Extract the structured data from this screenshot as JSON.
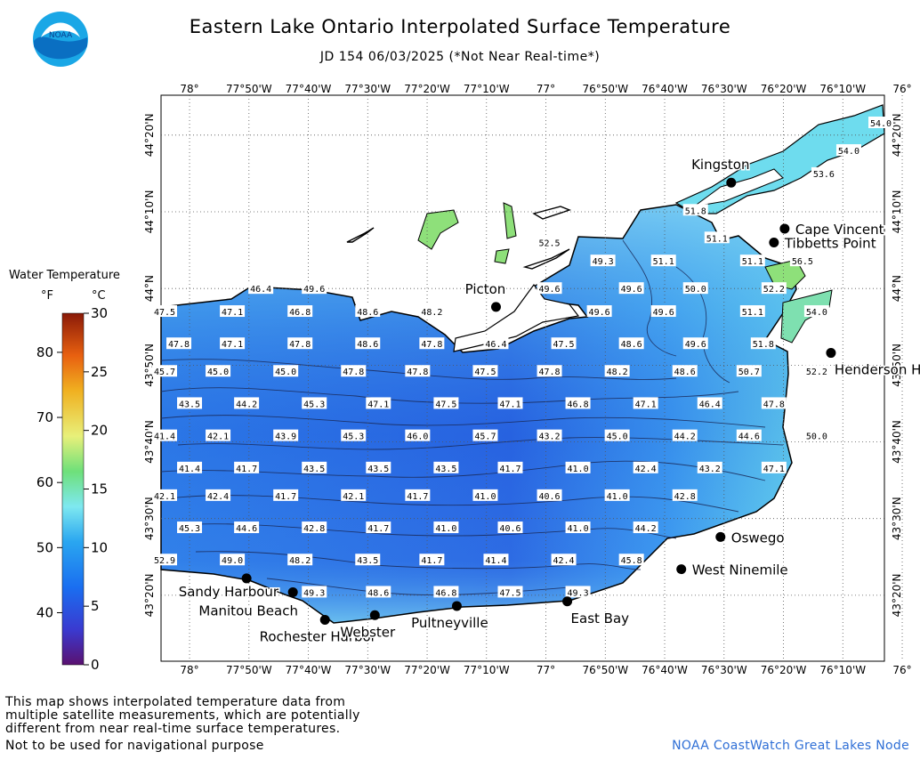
{
  "title": "Eastern Lake Ontario Interpolated Surface Temperature",
  "subtitle": "JD 154 06/03/2025 (*Not Near Real-time*)",
  "logo": {
    "text": "NOAA",
    "icon": "noaa-logo-icon"
  },
  "legend": {
    "title": "Water Temperature",
    "unit_f": "°F",
    "unit_c": "°C",
    "f_ticks": [
      "80",
      "70",
      "60",
      "50",
      "40"
    ],
    "f_values": [
      80,
      70,
      60,
      50,
      40
    ],
    "c_ticks": [
      "30",
      "25",
      "20",
      "15",
      "10",
      "5",
      "0"
    ],
    "c_values": [
      30,
      25,
      20,
      15,
      10,
      5,
      0
    ],
    "c_range": [
      0,
      30
    ]
  },
  "axes": {
    "x_labels": [
      "78°",
      "77°50'W",
      "77°40'W",
      "77°30'W",
      "77°20'W",
      "77°10'W",
      "77°",
      "76°50'W",
      "76°40'W",
      "76°30'W",
      "76°20'W",
      "76°10'W",
      "76°"
    ],
    "x_values": [
      -78.0,
      -77.8333,
      -77.6667,
      -77.5,
      -77.3333,
      -77.1667,
      -77.0,
      -76.8333,
      -76.6667,
      -76.5,
      -76.3333,
      -76.1667,
      -76.0
    ],
    "y_labels": [
      "44°20'N",
      "44°10'N",
      "44°N",
      "43°50'N",
      "43°40'N",
      "43°30'N",
      "43°20'N"
    ],
    "y_values": [
      44.3333,
      44.1667,
      44.0,
      43.8333,
      43.6667,
      43.5,
      43.3333
    ],
    "lon_range": [
      -78.08,
      -76.05
    ],
    "lat_range": [
      43.19,
      44.42
    ]
  },
  "places": [
    {
      "name": "Kingston",
      "lon": -76.48,
      "lat": 44.23,
      "anchor": "above"
    },
    {
      "name": "Cape Vincent",
      "lon": -76.33,
      "lat": 44.13,
      "anchor": "right"
    },
    {
      "name": "Tibbetts Point",
      "lon": -76.36,
      "lat": 44.1,
      "anchor": "right"
    },
    {
      "name": "Picton",
      "lon": -77.14,
      "lat": 43.96,
      "anchor": "above"
    },
    {
      "name": "Henderson Harbor",
      "lon": -76.2,
      "lat": 43.86,
      "anchor": "below-right"
    },
    {
      "name": "Oswego",
      "lon": -76.51,
      "lat": 43.46,
      "anchor": "right"
    },
    {
      "name": "West Ninemile",
      "lon": -76.62,
      "lat": 43.39,
      "anchor": "right"
    },
    {
      "name": "Sandy Harbour",
      "lon": -77.84,
      "lat": 43.37,
      "anchor": "left"
    },
    {
      "name": "Manitou Beach",
      "lon": -77.71,
      "lat": 43.34,
      "anchor": "below-left"
    },
    {
      "name": "Rochester Harbor",
      "lon": -77.62,
      "lat": 43.28,
      "anchor": "below"
    },
    {
      "name": "Webster",
      "lon": -77.48,
      "lat": 43.29,
      "anchor": "below"
    },
    {
      "name": "Pultneyville",
      "lon": -77.25,
      "lat": 43.31,
      "anchor": "below"
    },
    {
      "name": "East Bay",
      "lon": -76.94,
      "lat": 43.32,
      "anchor": "below-right"
    }
  ],
  "temperatures": [
    {
      "v": "54.0",
      "lon": -76.06,
      "lat": 44.36
    },
    {
      "v": "54.0",
      "lon": -76.15,
      "lat": 44.3
    },
    {
      "v": "53.6",
      "lon": -76.22,
      "lat": 44.25
    },
    {
      "v": "51.8",
      "lon": -76.58,
      "lat": 44.17
    },
    {
      "v": "51.1",
      "lon": -76.52,
      "lat": 44.11
    },
    {
      "v": "52.5",
      "lon": -76.99,
      "lat": 44.1
    },
    {
      "v": "49.3",
      "lon": -76.84,
      "lat": 44.06
    },
    {
      "v": "51.1",
      "lon": -76.67,
      "lat": 44.06
    },
    {
      "v": "51.1",
      "lon": -76.42,
      "lat": 44.06
    },
    {
      "v": "56.5",
      "lon": -76.28,
      "lat": 44.06
    },
    {
      "v": "46.4",
      "lon": -77.8,
      "lat": 44.0
    },
    {
      "v": "49.6",
      "lon": -77.65,
      "lat": 44.0
    },
    {
      "v": "49.6",
      "lon": -76.99,
      "lat": 44.0
    },
    {
      "v": "49.6",
      "lon": -76.76,
      "lat": 44.0
    },
    {
      "v": "50.0",
      "lon": -76.58,
      "lat": 44.0
    },
    {
      "v": "52.2",
      "lon": -76.36,
      "lat": 44.0
    },
    {
      "v": "47.5",
      "lon": -78.07,
      "lat": 43.95
    },
    {
      "v": "47.1",
      "lon": -77.88,
      "lat": 43.95
    },
    {
      "v": "46.8",
      "lon": -77.69,
      "lat": 43.95
    },
    {
      "v": "48.6",
      "lon": -77.5,
      "lat": 43.95
    },
    {
      "v": "48.2",
      "lon": -77.32,
      "lat": 43.95
    },
    {
      "v": "49.6",
      "lon": -76.85,
      "lat": 43.95
    },
    {
      "v": "49.6",
      "lon": -76.67,
      "lat": 43.95
    },
    {
      "v": "51.1",
      "lon": -76.42,
      "lat": 43.95
    },
    {
      "v": "54.0",
      "lon": -76.24,
      "lat": 43.95
    },
    {
      "v": "47.8",
      "lon": -78.03,
      "lat": 43.88
    },
    {
      "v": "47.1",
      "lon": -77.88,
      "lat": 43.88
    },
    {
      "v": "47.8",
      "lon": -77.69,
      "lat": 43.88
    },
    {
      "v": "48.6",
      "lon": -77.5,
      "lat": 43.88
    },
    {
      "v": "47.8",
      "lon": -77.32,
      "lat": 43.88
    },
    {
      "v": "46.4",
      "lon": -77.14,
      "lat": 43.88
    },
    {
      "v": "47.5",
      "lon": -76.95,
      "lat": 43.88
    },
    {
      "v": "48.6",
      "lon": -76.76,
      "lat": 43.88
    },
    {
      "v": "49.6",
      "lon": -76.58,
      "lat": 43.88
    },
    {
      "v": "51.8",
      "lon": -76.39,
      "lat": 43.88
    },
    {
      "v": "45.7",
      "lon": -78.07,
      "lat": 43.82
    },
    {
      "v": "45.0",
      "lon": -77.92,
      "lat": 43.82
    },
    {
      "v": "45.0",
      "lon": -77.73,
      "lat": 43.82
    },
    {
      "v": "47.8",
      "lon": -77.54,
      "lat": 43.82
    },
    {
      "v": "47.8",
      "lon": -77.36,
      "lat": 43.82
    },
    {
      "v": "47.5",
      "lon": -77.17,
      "lat": 43.82
    },
    {
      "v": "47.8",
      "lon": -76.99,
      "lat": 43.82
    },
    {
      "v": "48.2",
      "lon": -76.8,
      "lat": 43.82
    },
    {
      "v": "48.6",
      "lon": -76.61,
      "lat": 43.82
    },
    {
      "v": "50.7",
      "lon": -76.43,
      "lat": 43.82
    },
    {
      "v": "52.2",
      "lon": -76.24,
      "lat": 43.82
    },
    {
      "v": "43.5",
      "lon": -78.0,
      "lat": 43.75
    },
    {
      "v": "44.2",
      "lon": -77.84,
      "lat": 43.75
    },
    {
      "v": "45.3",
      "lon": -77.65,
      "lat": 43.75
    },
    {
      "v": "47.1",
      "lon": -77.47,
      "lat": 43.75
    },
    {
      "v": "47.5",
      "lon": -77.28,
      "lat": 43.75
    },
    {
      "v": "47.1",
      "lon": -77.1,
      "lat": 43.75
    },
    {
      "v": "46.8",
      "lon": -76.91,
      "lat": 43.75
    },
    {
      "v": "47.1",
      "lon": -76.72,
      "lat": 43.75
    },
    {
      "v": "46.4",
      "lon": -76.54,
      "lat": 43.75
    },
    {
      "v": "47.8",
      "lon": -76.36,
      "lat": 43.75
    },
    {
      "v": "41.4",
      "lon": -78.07,
      "lat": 43.68
    },
    {
      "v": "42.1",
      "lon": -77.92,
      "lat": 43.68
    },
    {
      "v": "43.9",
      "lon": -77.73,
      "lat": 43.68
    },
    {
      "v": "45.3",
      "lon": -77.54,
      "lat": 43.68
    },
    {
      "v": "46.0",
      "lon": -77.36,
      "lat": 43.68
    },
    {
      "v": "45.7",
      "lon": -77.17,
      "lat": 43.68
    },
    {
      "v": "43.2",
      "lon": -76.99,
      "lat": 43.68
    },
    {
      "v": "45.0",
      "lon": -76.8,
      "lat": 43.68
    },
    {
      "v": "44.2",
      "lon": -76.61,
      "lat": 43.68
    },
    {
      "v": "44.6",
      "lon": -76.43,
      "lat": 43.68
    },
    {
      "v": "50.0",
      "lon": -76.24,
      "lat": 43.68
    },
    {
      "v": "41.4",
      "lon": -78.0,
      "lat": 43.61
    },
    {
      "v": "41.7",
      "lon": -77.84,
      "lat": 43.61
    },
    {
      "v": "43.5",
      "lon": -77.65,
      "lat": 43.61
    },
    {
      "v": "43.5",
      "lon": -77.47,
      "lat": 43.61
    },
    {
      "v": "43.5",
      "lon": -77.28,
      "lat": 43.61
    },
    {
      "v": "41.7",
      "lon": -77.1,
      "lat": 43.61
    },
    {
      "v": "41.0",
      "lon": -76.91,
      "lat": 43.61
    },
    {
      "v": "42.4",
      "lon": -76.72,
      "lat": 43.61
    },
    {
      "v": "43.2",
      "lon": -76.54,
      "lat": 43.61
    },
    {
      "v": "47.1",
      "lon": -76.36,
      "lat": 43.61
    },
    {
      "v": "42.1",
      "lon": -78.07,
      "lat": 43.55
    },
    {
      "v": "42.4",
      "lon": -77.92,
      "lat": 43.55
    },
    {
      "v": "41.7",
      "lon": -77.73,
      "lat": 43.55
    },
    {
      "v": "42.1",
      "lon": -77.54,
      "lat": 43.55
    },
    {
      "v": "41.7",
      "lon": -77.36,
      "lat": 43.55
    },
    {
      "v": "41.0",
      "lon": -77.17,
      "lat": 43.55
    },
    {
      "v": "40.6",
      "lon": -76.99,
      "lat": 43.55
    },
    {
      "v": "41.0",
      "lon": -76.8,
      "lat": 43.55
    },
    {
      "v": "42.8",
      "lon": -76.61,
      "lat": 43.55
    },
    {
      "v": "45.3",
      "lon": -78.0,
      "lat": 43.48
    },
    {
      "v": "44.6",
      "lon": -77.84,
      "lat": 43.48
    },
    {
      "v": "42.8",
      "lon": -77.65,
      "lat": 43.48
    },
    {
      "v": "41.7",
      "lon": -77.47,
      "lat": 43.48
    },
    {
      "v": "41.0",
      "lon": -77.28,
      "lat": 43.48
    },
    {
      "v": "40.6",
      "lon": -77.1,
      "lat": 43.48
    },
    {
      "v": "41.0",
      "lon": -76.91,
      "lat": 43.48
    },
    {
      "v": "44.2",
      "lon": -76.72,
      "lat": 43.48
    },
    {
      "v": "52.9",
      "lon": -78.07,
      "lat": 43.41
    },
    {
      "v": "49.0",
      "lon": -77.88,
      "lat": 43.41
    },
    {
      "v": "48.2",
      "lon": -77.69,
      "lat": 43.41
    },
    {
      "v": "43.5",
      "lon": -77.5,
      "lat": 43.41
    },
    {
      "v": "41.7",
      "lon": -77.32,
      "lat": 43.41
    },
    {
      "v": "41.4",
      "lon": -77.14,
      "lat": 43.41
    },
    {
      "v": "42.4",
      "lon": -76.95,
      "lat": 43.41
    },
    {
      "v": "45.8",
      "lon": -76.76,
      "lat": 43.41
    },
    {
      "v": "49.3",
      "lon": -77.65,
      "lat": 43.34
    },
    {
      "v": "48.6",
      "lon": -77.47,
      "lat": 43.34
    },
    {
      "v": "46.8",
      "lon": -77.28,
      "lat": 43.34
    },
    {
      "v": "47.5",
      "lon": -77.1,
      "lat": 43.34
    },
    {
      "v": "49.3",
      "lon": -76.91,
      "lat": 43.34
    }
  ],
  "footer": {
    "note_line1": "This map shows interpolated temperature data from",
    "note_line2": "multiple satellite measurements, which are potentially",
    "note_line3": "different from near real-time surface temperatures.",
    "navigation": "Not to be used for navigational purpose",
    "credit": "NOAA CoastWatch Great Lakes Node"
  },
  "colors": {
    "cold": "#2a63e0",
    "warm": "#6ee0ee",
    "land_warm": "#8ee07a",
    "background": "#ffffff",
    "credit_text": "#2f6fd6"
  }
}
